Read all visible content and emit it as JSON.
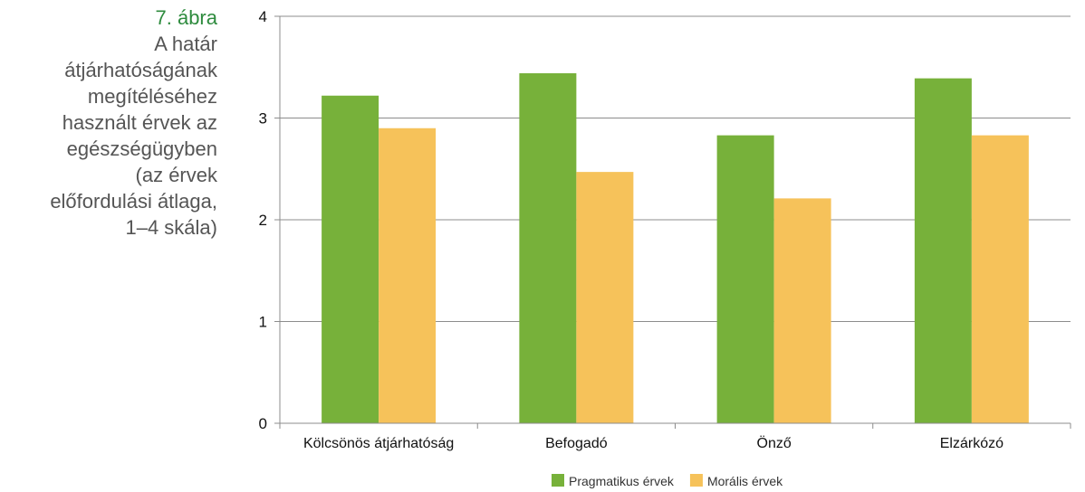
{
  "caption": {
    "figure_number": "7. ábra",
    "title": "A határ\nátjárhatóságának\nmegítéléséhez\nhasznált érvek az\negészségügyben\n(az érvek\nelőfordulási átlaga,\n1–4 skála)"
  },
  "chart_data": {
    "type": "bar",
    "categories": [
      "Kölcsönös átjárhatóság",
      "Befogadó",
      "Önző",
      "Elzárkózó"
    ],
    "series": [
      {
        "name": "Pragmatikus érvek",
        "color": "#77b13a",
        "values": [
          3.22,
          3.44,
          2.83,
          3.39
        ]
      },
      {
        "name": "Morális érvek",
        "color": "#f6c25a",
        "values": [
          2.9,
          2.47,
          2.21,
          2.83
        ]
      }
    ],
    "ylim": [
      0,
      4
    ],
    "yticks": [
      "0",
      "1",
      "2",
      "3",
      "4"
    ],
    "grid": true,
    "legend_position": "bottom"
  }
}
